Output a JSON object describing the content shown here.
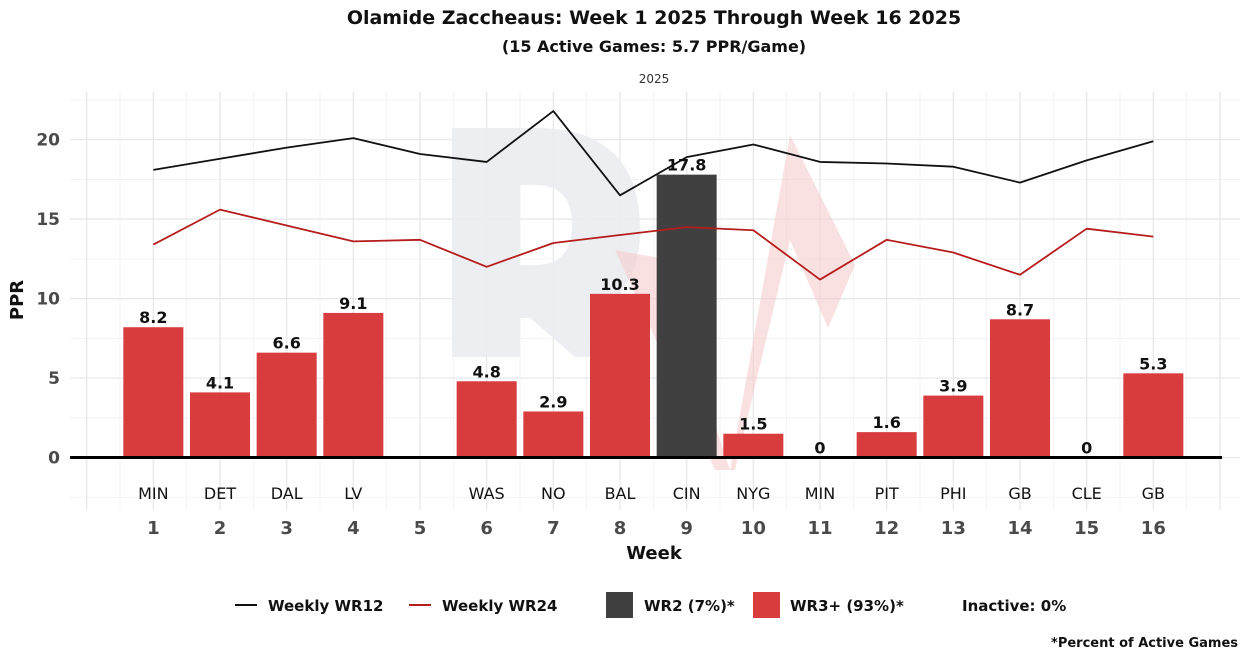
{
  "chart_data": {
    "type": "bar",
    "title": "Olamide Zaccheaus: Week 1 2025 Through Week 16 2025",
    "subtitle": "(15 Active Games: 5.7 PPR/Game)",
    "facet_label": "2025",
    "xlabel": "Week",
    "ylabel": "PPR",
    "xlim": [
      -0.25,
      17.3
    ],
    "ylim": [
      -3.3,
      23
    ],
    "grid": true,
    "y_ticks": [
      0,
      5,
      10,
      15,
      20
    ],
    "x_ticks": [
      1,
      2,
      3,
      4,
      5,
      6,
      7,
      8,
      9,
      10,
      11,
      12,
      13,
      14,
      15,
      16
    ],
    "weeks": [
      {
        "week": 1,
        "opponent": "MIN",
        "ppr": 8.2,
        "label": "8.2",
        "tier": "WR3+"
      },
      {
        "week": 2,
        "opponent": "DET",
        "ppr": 4.1,
        "label": "4.1",
        "tier": "WR3+"
      },
      {
        "week": 3,
        "opponent": "DAL",
        "ppr": 6.6,
        "label": "6.6",
        "tier": "WR3+"
      },
      {
        "week": 4,
        "opponent": "LV",
        "ppr": 9.1,
        "label": "9.1",
        "tier": "WR3+"
      },
      {
        "week": 5,
        "opponent": "",
        "ppr": null,
        "label": "",
        "tier": "bye"
      },
      {
        "week": 6,
        "opponent": "WAS",
        "ppr": 4.8,
        "label": "4.8",
        "tier": "WR3+"
      },
      {
        "week": 7,
        "opponent": "NO",
        "ppr": 2.9,
        "label": "2.9",
        "tier": "WR3+"
      },
      {
        "week": 8,
        "opponent": "BAL",
        "ppr": 10.3,
        "label": "10.3",
        "tier": "WR3+"
      },
      {
        "week": 9,
        "opponent": "CIN",
        "ppr": 17.8,
        "label": "17.8",
        "tier": "WR2"
      },
      {
        "week": 10,
        "opponent": "NYG",
        "ppr": 1.5,
        "label": "1.5",
        "tier": "WR3+"
      },
      {
        "week": 11,
        "opponent": "MIN",
        "ppr": 0,
        "label": "0",
        "tier": "WR3+"
      },
      {
        "week": 12,
        "opponent": "PIT",
        "ppr": 1.6,
        "label": "1.6",
        "tier": "WR3+"
      },
      {
        "week": 13,
        "opponent": "PHI",
        "ppr": 3.9,
        "label": "3.9",
        "tier": "WR3+"
      },
      {
        "week": 14,
        "opponent": "GB",
        "ppr": 8.7,
        "label": "8.7",
        "tier": "WR3+"
      },
      {
        "week": 15,
        "opponent": "CLE",
        "ppr": 0,
        "label": "0",
        "tier": "WR3+"
      },
      {
        "week": 16,
        "opponent": "GB",
        "ppr": 5.3,
        "label": "5.3",
        "tier": "WR3+"
      }
    ],
    "series": [
      {
        "name": "Weekly WR12",
        "type": "line",
        "color": "#111111",
        "x": [
          1,
          2,
          3,
          4,
          5,
          6,
          7,
          8,
          9,
          10,
          11,
          12,
          13,
          14,
          15,
          16
        ],
        "values": [
          18.1,
          18.8,
          19.5,
          20.1,
          19.1,
          18.6,
          21.8,
          16.5,
          18.9,
          19.7,
          18.6,
          18.5,
          18.3,
          17.3,
          18.7,
          19.9
        ]
      },
      {
        "name": "Weekly WR24",
        "type": "line",
        "color": "#b71c1c",
        "x": [
          1,
          2,
          3,
          4,
          5,
          6,
          7,
          8,
          9,
          10,
          11,
          12,
          13,
          14,
          15,
          16
        ],
        "values": [
          13.4,
          15.6,
          14.6,
          13.6,
          13.7,
          12.0,
          13.5,
          14.0,
          14.5,
          14.3,
          11.2,
          13.7,
          12.9,
          11.5,
          14.4,
          13.9
        ]
      }
    ],
    "bar_colors": {
      "WR2": "#404040",
      "WR3+": "#d93c3c"
    },
    "legend": {
      "position": "bottom",
      "items": [
        {
          "kind": "line",
          "label": "Weekly WR12",
          "color": "#111111"
        },
        {
          "kind": "line",
          "label": "Weekly WR24",
          "color": "#b71c1c"
        },
        {
          "kind": "box",
          "label": "WR2 (7%)*",
          "color": "#404040"
        },
        {
          "kind": "box",
          "label": "WR3+ (93%)*",
          "color": "#d93c3c"
        },
        {
          "kind": "text",
          "label": "Inactive: 0%"
        }
      ]
    },
    "footnote": "*Percent of Active Games"
  }
}
